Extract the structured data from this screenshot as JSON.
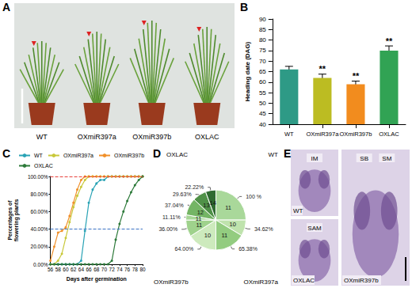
{
  "photos": [
    {
      "panel": "A",
      "labels": [
        "WT",
        "OXmiR397a",
        "OXmiR397b",
        "OXLAC"
      ]
    },
    {
      "panel": "E",
      "images": [
        {
          "title": "WT",
          "marks": [
            "IM"
          ]
        },
        {
          "title": "OXLAC",
          "marks": [
            "SAM"
          ]
        },
        {
          "title": "OXmiR397b",
          "marks": [
            "SB",
            "SM"
          ]
        }
      ]
    }
  ],
  "chart_data": [
    {
      "panel": "B",
      "type": "bar",
      "ylabel": "Heading date (DAG)",
      "categories": [
        "WT",
        "OXmiR397a",
        "OXmiR397b",
        "OXLAC"
      ],
      "values": [
        66,
        62,
        59,
        75
      ],
      "errors": [
        1.5,
        1.8,
        1.5,
        2.2
      ],
      "significance": [
        null,
        "**",
        "**",
        "**"
      ],
      "colors": [
        "#2e9a86",
        "#bcbc22",
        "#f28c1e",
        "#31a354"
      ],
      "ylim": [
        40,
        90
      ],
      "yticks": [
        40,
        45,
        50,
        55,
        60,
        65,
        70,
        75,
        80,
        85,
        90
      ],
      "grid": false
    },
    {
      "panel": "C",
      "type": "line",
      "xlabel": "Days after germination",
      "ylabel": "Percentages of flowering plants",
      "x": [
        56,
        57,
        58,
        59,
        60,
        61,
        62,
        63,
        64,
        65,
        66,
        67,
        68,
        69,
        70,
        71,
        72,
        73,
        74,
        75,
        76,
        77,
        78,
        79,
        80
      ],
      "series": [
        {
          "name": "WT",
          "color": "#2aa3b5",
          "values": [
            0,
            0,
            0,
            0,
            0,
            0,
            0,
            0,
            4,
            38,
            70,
            85,
            92,
            96,
            96,
            100,
            100,
            100,
            100,
            100,
            100,
            100,
            100,
            100,
            100
          ]
        },
        {
          "name": "OXmiR397a",
          "color": "#c8c83a",
          "values": [
            0,
            0,
            4,
            12,
            30,
            48,
            65,
            78,
            88,
            96,
            100,
            100,
            100,
            100,
            100,
            100,
            100,
            100,
            100,
            100,
            100,
            100,
            100,
            100,
            100
          ]
        },
        {
          "name": "OXmiR397b",
          "color": "#f0902a",
          "values": [
            4,
            20,
            36,
            38,
            42,
            55,
            70,
            85,
            96,
            100,
            100,
            100,
            100,
            100,
            100,
            100,
            100,
            100,
            100,
            100,
            100,
            100,
            100,
            100,
            100
          ]
        },
        {
          "name": "OXLAC",
          "color": "#2d7a3a",
          "values": [
            0,
            0,
            0,
            0,
            0,
            0,
            0,
            0,
            0,
            0,
            0,
            0,
            0,
            0,
            0,
            0,
            4,
            28,
            46,
            60,
            72,
            82,
            90,
            96,
            100
          ]
        }
      ],
      "marker": "circle",
      "xlim": [
        56,
        80
      ],
      "xticks": [
        56,
        58,
        60,
        62,
        64,
        66,
        68,
        70,
        72,
        74,
        76,
        78,
        80
      ],
      "ylim": [
        0,
        100
      ],
      "yticks": [
        {
          "value": 0,
          "label": "0.00%"
        },
        {
          "value": 20,
          "label": "20.00%"
        },
        {
          "value": 40,
          "label": "40.00%"
        },
        {
          "value": 60,
          "label": "60.00%"
        },
        {
          "value": 80,
          "label": "80.00%"
        },
        {
          "value": 100,
          "label": "100.00%"
        }
      ],
      "reference_lines": [
        {
          "value": 100,
          "color": "#e8413c",
          "line_style": "dashed"
        },
        {
          "value": 40,
          "color": "#3b73c4",
          "line_style": "dashed"
        }
      ],
      "legend": "top",
      "grid": false
    },
    {
      "panel": "D",
      "type": "pie",
      "groups": [
        {
          "name": "WT",
          "categories": [
            "11"
          ],
          "values": [
            100
          ],
          "value_labels": [
            "100 %"
          ],
          "colors": [
            "#a9d89a"
          ]
        },
        {
          "name": "OXmiR397a",
          "categories": [
            "10",
            "11"
          ],
          "values": [
            34.62,
            65.38
          ],
          "value_labels": [
            "34.62%",
            "65.38%"
          ],
          "colors": [
            "#bfe3ad",
            "#93cc80"
          ]
        },
        {
          "name": "OXmiR397b",
          "categories": [
            "10",
            "11"
          ],
          "values": [
            64.0,
            36.0
          ],
          "value_labels": [
            "64.00%",
            "36.00%"
          ],
          "colors": [
            "#cdeabd",
            "#9fd28c"
          ]
        },
        {
          "name": "OXLAC",
          "categories": [
            "11",
            "12",
            "13",
            "14"
          ],
          "values": [
            11.11,
            37.04,
            29.63,
            22.22
          ],
          "value_labels": [
            "11.11%",
            "37.04%",
            "29.63%",
            "22.22%"
          ],
          "colors": [
            "#a6d796",
            "#74b565",
            "#4f9148",
            "#2f6b31"
          ]
        }
      ]
    }
  ]
}
